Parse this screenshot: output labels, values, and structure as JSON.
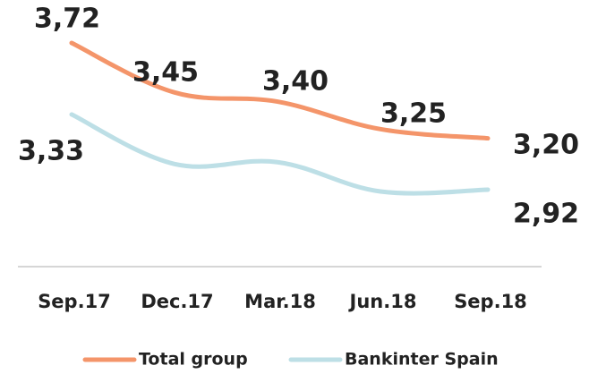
{
  "chart_data": {
    "type": "line",
    "categories": [
      "Sep.17",
      "Dec.17",
      "Mar.18",
      "Jun.18",
      "Sep.18"
    ],
    "series": [
      {
        "name": "Total group",
        "color": "#f4956a",
        "values": [
          3.72,
          3.45,
          3.4,
          3.25,
          3.2
        ],
        "value_labels": [
          "3,72",
          "3,45",
          "3,40",
          "3,25",
          "3,20"
        ]
      },
      {
        "name": "Bankinter Spain",
        "color": "#bddfe6",
        "values": [
          3.33,
          3.06,
          3.07,
          2.91,
          2.92
        ],
        "value_labels": [
          "3,33",
          null,
          null,
          null,
          "2,92"
        ]
      }
    ],
    "legend": "bottom"
  }
}
